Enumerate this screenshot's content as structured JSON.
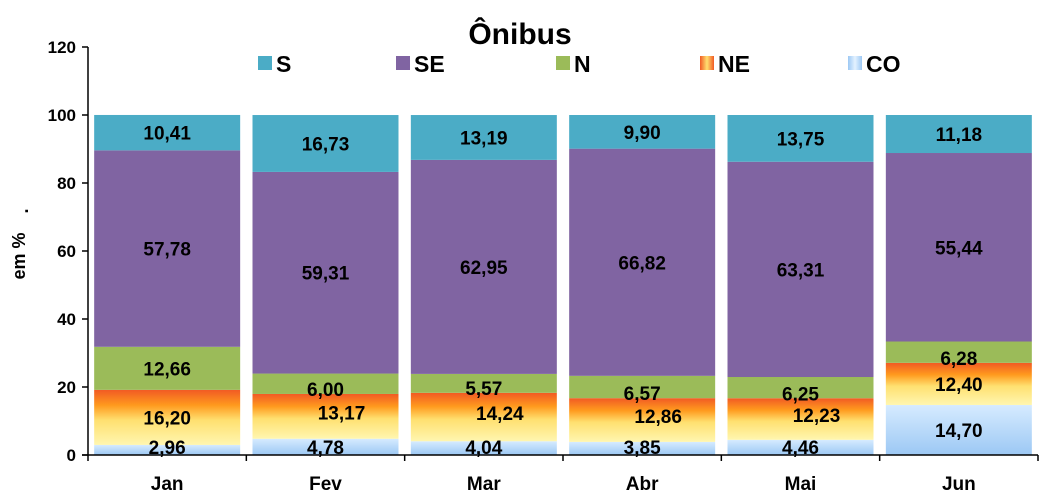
{
  "chart_data": {
    "type": "bar",
    "stacked": true,
    "title": "Ônibus",
    "xlabel": "",
    "ylabel": "em %",
    "ylabel_suffix": ".",
    "ylim": [
      0,
      120
    ],
    "yticks": [
      "0",
      "20",
      "40",
      "60",
      "80",
      "100",
      "120"
    ],
    "grid": false,
    "legend_position": "top",
    "categories": [
      "Jan",
      "Fev",
      "Mar",
      "Abr",
      "Mai",
      "Jun"
    ],
    "series": [
      {
        "name": "CO",
        "color": "#a9cdf2",
        "values": [
          2.96,
          4.78,
          4.04,
          3.85,
          4.46,
          14.7
        ],
        "labels": [
          "2,96",
          "4,78",
          "4,04",
          "3,85",
          "4,46",
          "14,70"
        ]
      },
      {
        "name": "NE",
        "color": "#f7921e",
        "values": [
          16.2,
          13.17,
          14.24,
          12.86,
          12.23,
          12.4
        ],
        "labels": [
          "16,20",
          "13,17",
          "14,24",
          "12,86",
          "12,23",
          "12,40"
        ]
      },
      {
        "name": "N",
        "color": "#9bbb59",
        "values": [
          12.66,
          6.0,
          5.57,
          6.57,
          6.25,
          6.28
        ],
        "labels": [
          "12,66",
          "6,00",
          "5,57",
          "6,57",
          "6,25",
          "6,28"
        ]
      },
      {
        "name": "SE",
        "color": "#8064a2",
        "values": [
          57.78,
          59.31,
          62.95,
          66.82,
          63.31,
          55.44
        ],
        "labels": [
          "57,78",
          "59,31",
          "62,95",
          "66,82",
          "63,31",
          "55,44"
        ]
      },
      {
        "name": "S",
        "color": "#4bacc6",
        "values": [
          10.41,
          16.73,
          13.19,
          9.9,
          13.75,
          11.18
        ],
        "labels": [
          "10,41",
          "16,73",
          "13,19",
          "9,90",
          "13,75",
          "11,18"
        ]
      }
    ],
    "legend_order": [
      "S",
      "SE",
      "N",
      "NE",
      "CO"
    ]
  }
}
